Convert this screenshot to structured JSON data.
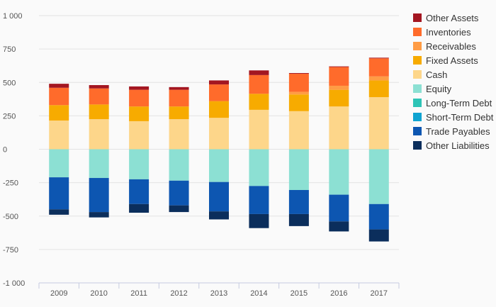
{
  "chart_data": {
    "type": "bar",
    "stacked": true,
    "categories": [
      "2009",
      "2010",
      "2011",
      "2012",
      "2013",
      "2014",
      "2015",
      "2016",
      "2017"
    ],
    "ylim": [
      -1000,
      1000
    ],
    "yticks": [
      1000,
      750,
      500,
      250,
      0,
      -250,
      -500,
      -750,
      -1000
    ],
    "ytick_labels": [
      "1 000",
      "750",
      "500",
      "250",
      "0",
      "-250",
      "-500",
      "-750",
      "-1 000"
    ],
    "grid": true,
    "legend_position": "right",
    "series": [
      {
        "name": "Other Assets",
        "color": "#a31621",
        "side": "positive",
        "values": [
          30,
          25,
          25,
          20,
          30,
          35,
          5,
          5,
          5
        ]
      },
      {
        "name": "Inventories",
        "color": "#ff6b2b",
        "side": "positive",
        "values": [
          130,
          120,
          125,
          125,
          125,
          140,
          135,
          140,
          135
        ]
      },
      {
        "name": "Receivables",
        "color": "#ff9c45",
        "side": "positive",
        "values": [
          0,
          0,
          0,
          0,
          0,
          0,
          20,
          30,
          30
        ]
      },
      {
        "name": "Fixed Assets",
        "color": "#f7ab00",
        "side": "positive",
        "values": [
          115,
          110,
          110,
          95,
          125,
          120,
          125,
          125,
          125
        ]
      },
      {
        "name": "Cash",
        "color": "#fdd68a",
        "side": "positive",
        "values": [
          215,
          225,
          210,
          225,
          235,
          295,
          285,
          320,
          390
        ]
      },
      {
        "name": "Equity",
        "color": "#8ce0d3",
        "side": "negative",
        "values": [
          210,
          215,
          225,
          235,
          245,
          275,
          305,
          340,
          410
        ]
      },
      {
        "name": "Long-Term Debt",
        "color": "#2ec4b6",
        "side": "negative",
        "values": [
          0,
          0,
          0,
          0,
          0,
          0,
          0,
          0,
          0
        ]
      },
      {
        "name": "Short-Term Debt",
        "color": "#0fa3d1",
        "side": "negative",
        "values": [
          0,
          0,
          0,
          0,
          0,
          0,
          0,
          0,
          0
        ]
      },
      {
        "name": "Trade Payables",
        "color": "#0d56b1",
        "side": "negative",
        "values": [
          240,
          255,
          185,
          185,
          220,
          210,
          180,
          200,
          190
        ]
      },
      {
        "name": "Other Liabilities",
        "color": "#0b2e5c",
        "side": "negative",
        "values": [
          40,
          40,
          65,
          50,
          60,
          105,
          90,
          75,
          90
        ]
      }
    ]
  }
}
